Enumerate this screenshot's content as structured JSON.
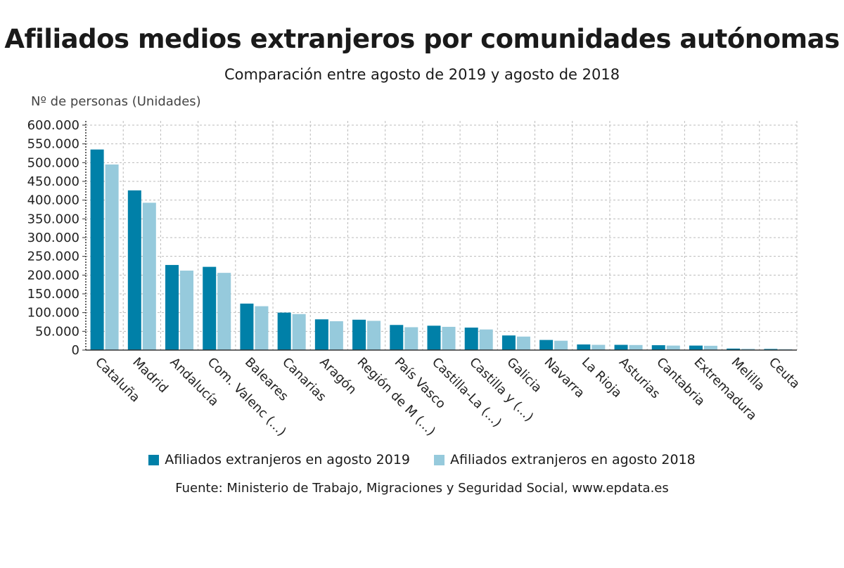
{
  "title": "Afiliados medios extranjeros por comunidades autónomas",
  "subtitle": "Comparación entre agosto de 2019 y agosto de 2018",
  "source": "Fuente: Ministerio de Trabajo, Migraciones y Seguridad Social, www.epdata.es",
  "colors": {
    "series_2019": "#0080a8",
    "series_2018": "#96cadc",
    "grid": "#bbbbbb",
    "axis": "#333333"
  },
  "chart_data": {
    "type": "bar",
    "ylabel": "Nº de personas (Unidades)",
    "ylim": [
      0,
      600000
    ],
    "yticks": [
      0,
      50000,
      100000,
      150000,
      200000,
      250000,
      300000,
      350000,
      400000,
      450000,
      500000,
      550000,
      600000
    ],
    "ytick_labels": [
      "0",
      "50.000",
      "100.000",
      "150.000",
      "200.000",
      "250.000",
      "300.000",
      "350.000",
      "400.000",
      "450.000",
      "500.000",
      "550.000",
      "600.000"
    ],
    "grid": true,
    "legend_position": "bottom",
    "categories": [
      "Cataluña",
      "Madrid",
      "Andalucía",
      "Com. Valenc (...)",
      "Baleares",
      "Canarias",
      "Aragón",
      "Región de M (...)",
      "País Vasco",
      "Castilla-La (...)",
      "Castilla y (...)",
      "Galicia",
      "Navarra",
      "La Rioja",
      "Asturias",
      "Cantabria",
      "Extremadura",
      "Melilla",
      "Ceuta"
    ],
    "series": [
      {
        "name": "Afiliados extranjeros en agosto 2019",
        "values": [
          535000,
          426000,
          227000,
          222000,
          124000,
          100000,
          82000,
          81000,
          67000,
          65000,
          60000,
          39000,
          27000,
          15000,
          14000,
          13000,
          12000,
          4000,
          3000
        ]
      },
      {
        "name": "Afiliados extranjeros en agosto 2018",
        "values": [
          495000,
          393000,
          212000,
          206000,
          117000,
          96000,
          77000,
          78000,
          61000,
          62000,
          55000,
          36000,
          25000,
          14000,
          13500,
          12000,
          11500,
          3500,
          2500
        ]
      }
    ]
  }
}
